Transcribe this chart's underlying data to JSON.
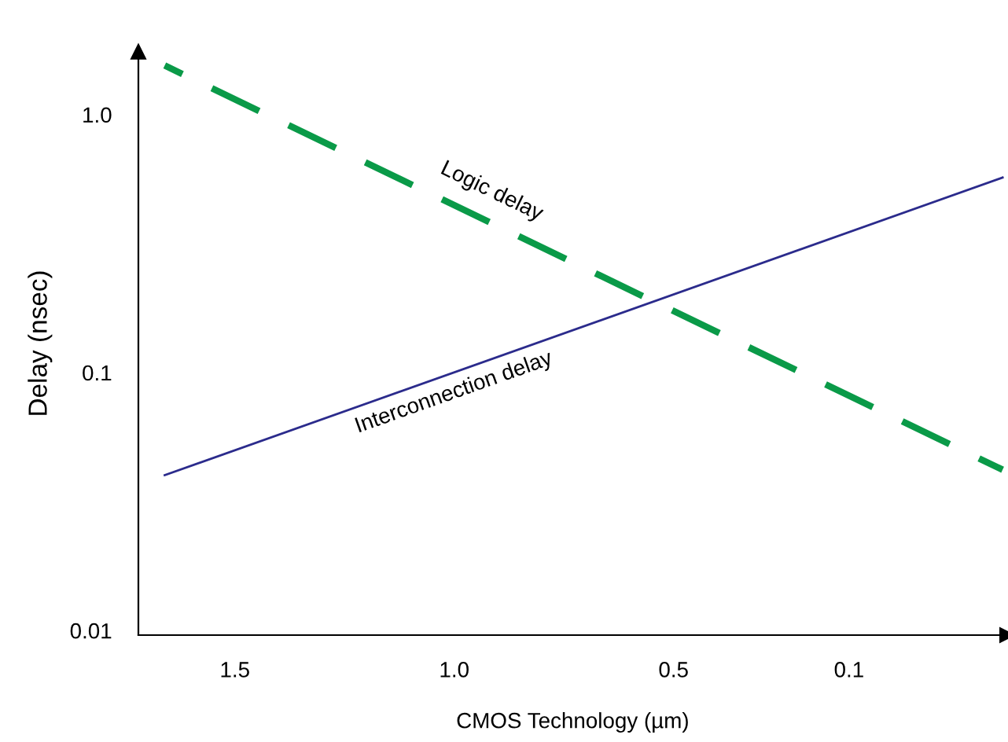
{
  "chart_data": {
    "type": "line",
    "xlabel": "CMOS Technology (µm)",
    "ylabel": "Delay (nsec)",
    "log": "y",
    "grid": false,
    "legend": false,
    "xlim": [
      1.72,
      -0.26
    ],
    "xticks": [
      1.5,
      {
        "value": 1.0,
        "label": "1.0"
      },
      0.5,
      0.1
    ],
    "ylim": [
      0.0096,
      1.75
    ],
    "yticks": [
      {
        "value": 0.01,
        "label": "0.01"
      },
      {
        "value": 0.1,
        "label": "0.1"
      },
      {
        "value": 1,
        "label": "1.0"
      }
    ],
    "x": [
      1.66,
      -0.25
    ],
    "series": [
      {
        "color": "#0a9a48",
        "line_style": "dashed",
        "values": [
          1.55,
          0.042
        ]
      },
      {
        "color": "#2b2b8c",
        "line_style": "solid",
        "values": [
          0.04,
          0.57
        ]
      }
    ],
    "annotations": [
      "Logic delay",
      "Interconnection delay"
    ]
  }
}
